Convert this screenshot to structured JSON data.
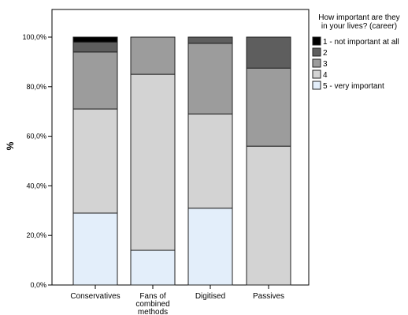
{
  "chart_data": {
    "type": "bar",
    "stacked": true,
    "title": "",
    "xlabel": "",
    "ylabel": "%",
    "ylim": [
      0,
      100
    ],
    "y_ticks": [
      "0,0%",
      "20,0%",
      "40,0%",
      "60,0%",
      "80,0%",
      "100,0%"
    ],
    "y_tick_values": [
      0,
      20,
      40,
      60,
      80,
      100
    ],
    "grid": false,
    "legend_position": "right",
    "legend_title": "How important are they in your lives? (career)",
    "categories": [
      "Conservatives",
      "Fans of combined methods",
      "Digitised",
      "Passives"
    ],
    "series": [
      {
        "name": "5 - very important",
        "color": "#e3eefa",
        "values": [
          29,
          14,
          31,
          0
        ]
      },
      {
        "name": "4",
        "color": "#d3d3d3",
        "values": [
          42,
          71,
          38,
          56
        ]
      },
      {
        "name": "3",
        "color": "#9c9c9c",
        "values": [
          23,
          15,
          28.5,
          31.5
        ]
      },
      {
        "name": "2",
        "color": "#5e5e5e",
        "values": [
          4,
          0,
          2.5,
          12.5
        ]
      },
      {
        "name": "1 - not important at all",
        "color": "#000000",
        "values": [
          2,
          0,
          0,
          0
        ]
      }
    ],
    "legend_order": [
      4,
      3,
      2,
      1,
      0
    ]
  }
}
